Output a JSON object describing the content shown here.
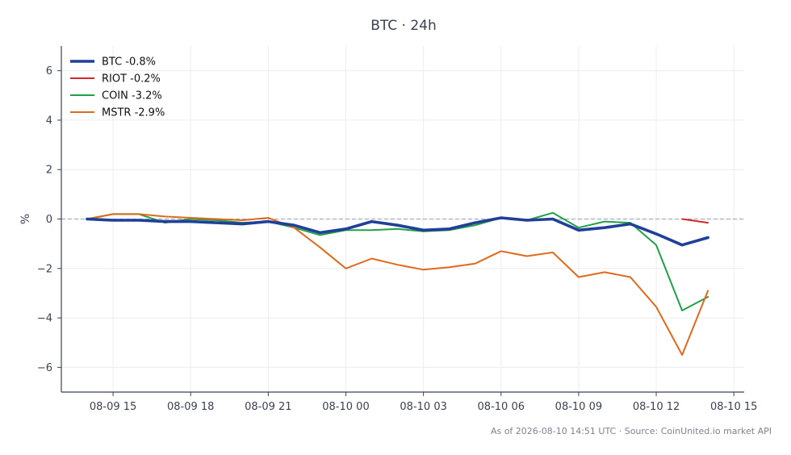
{
  "chart_data": {
    "type": "line",
    "title": "BTC · 24h",
    "ylabel": "%",
    "xlabel": "",
    "x_ticks": [
      "08-09 15",
      "08-09 18",
      "08-09 21",
      "08-10 00",
      "08-10 03",
      "08-10 06",
      "08-10 09",
      "08-10 12",
      "08-10 15"
    ],
    "x_tick_hours": [
      15,
      18,
      21,
      24,
      27,
      30,
      33,
      36,
      39
    ],
    "y_ticks": [
      -6,
      -4,
      -2,
      0,
      2,
      4,
      6
    ],
    "y_tick_labels": [
      "−6",
      "−4",
      "−2",
      "0",
      "2",
      "4",
      "6"
    ],
    "xlim_hours": [
      13,
      39.4
    ],
    "ylim": [
      -7,
      7
    ],
    "grid": true,
    "zero_line": true,
    "legend_position": "top-left",
    "series": [
      {
        "name": "BTC -0.8%",
        "color": "#1f3f99",
        "emphasis": true,
        "x_hours": [
          14,
          15,
          16,
          17,
          18,
          19,
          20,
          21,
          22,
          23,
          24,
          25,
          26,
          27,
          28,
          29,
          30,
          31,
          32,
          33,
          34,
          35,
          36,
          37,
          38
        ],
        "values": [
          0.0,
          -0.05,
          -0.05,
          -0.1,
          -0.1,
          -0.15,
          -0.2,
          -0.1,
          -0.25,
          -0.55,
          -0.4,
          -0.1,
          -0.25,
          -0.45,
          -0.4,
          -0.15,
          0.05,
          -0.05,
          0.0,
          -0.45,
          -0.35,
          -0.2,
          -0.6,
          -1.05,
          -0.75
        ]
      },
      {
        "name": "RIOT -0.2%",
        "color": "#d62728",
        "emphasis": false,
        "x_hours": [
          37,
          38
        ],
        "values": [
          0.0,
          -0.15
        ]
      },
      {
        "name": "COIN -3.2%",
        "color": "#22a046",
        "emphasis": false,
        "x_hours": [
          14,
          15,
          16,
          17,
          18,
          19,
          20,
          21,
          22,
          23,
          24,
          25,
          26,
          27,
          28,
          29,
          30,
          31,
          32,
          33,
          34,
          35,
          36,
          37,
          38
        ],
        "values": [
          0.0,
          0.2,
          0.2,
          -0.15,
          0.0,
          -0.05,
          -0.15,
          -0.1,
          -0.35,
          -0.65,
          -0.45,
          -0.45,
          -0.4,
          -0.5,
          -0.45,
          -0.25,
          0.05,
          -0.05,
          0.25,
          -0.35,
          -0.1,
          -0.15,
          -1.05,
          -3.7,
          -3.15
        ]
      },
      {
        "name": "MSTR -2.9%",
        "color": "#e06a1c",
        "emphasis": false,
        "x_hours": [
          14,
          15,
          16,
          17,
          18,
          19,
          20,
          21,
          22,
          23,
          24,
          25,
          26,
          27,
          28,
          29,
          30,
          31,
          32,
          33,
          34,
          35,
          36,
          37,
          38
        ],
        "values": [
          0.0,
          0.2,
          0.2,
          0.1,
          0.05,
          0.0,
          -0.05,
          0.05,
          -0.35,
          -1.15,
          -2.0,
          -1.6,
          -1.85,
          -2.05,
          -1.95,
          -1.8,
          -1.3,
          -1.5,
          -1.35,
          -2.35,
          -2.15,
          -2.35,
          -3.55,
          -5.5,
          -2.9
        ]
      }
    ]
  },
  "footer": "As of 2026-08-10 14:51 UTC · Source: CoinUnited.io market API"
}
